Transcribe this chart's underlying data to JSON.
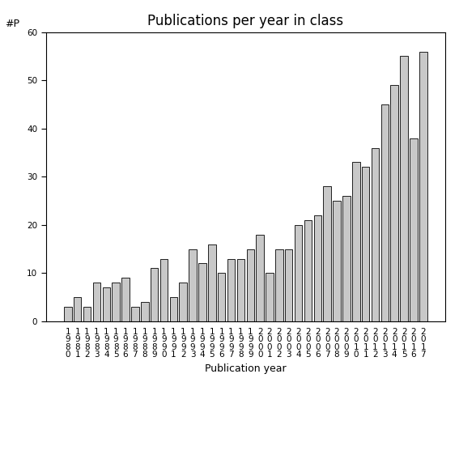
{
  "title": "Publications per year in class",
  "xlabel": "Publication year",
  "ylabel": "#P",
  "years": [
    "1980",
    "1981",
    "1982",
    "1983",
    "1984",
    "1985",
    "1986",
    "1987",
    "1988",
    "1989",
    "1990",
    "1991",
    "1992",
    "1993",
    "1994",
    "1995",
    "1996",
    "1997",
    "1998",
    "1999",
    "2000",
    "2001",
    "2002",
    "2003",
    "2004",
    "2005",
    "2006",
    "2007",
    "2008",
    "2009",
    "2010",
    "2011",
    "2012",
    "2013",
    "2014",
    "2015",
    "2016",
    "2017"
  ],
  "values": [
    3,
    5,
    3,
    8,
    7,
    8,
    9,
    3,
    4,
    11,
    13,
    5,
    8,
    15,
    12,
    16,
    10,
    13,
    13,
    15,
    18,
    10,
    15,
    15,
    20,
    21,
    22,
    28,
    25,
    26,
    33,
    32,
    36,
    45,
    49,
    55,
    38,
    56
  ],
  "ylim": [
    0,
    60
  ],
  "yticks": [
    0,
    10,
    20,
    30,
    40,
    50,
    60
  ],
  "bar_color": "#c8c8c8",
  "bar_edgecolor": "#000000",
  "background_color": "#ffffff",
  "title_fontsize": 12,
  "label_fontsize": 9,
  "tick_fontsize": 7.5
}
